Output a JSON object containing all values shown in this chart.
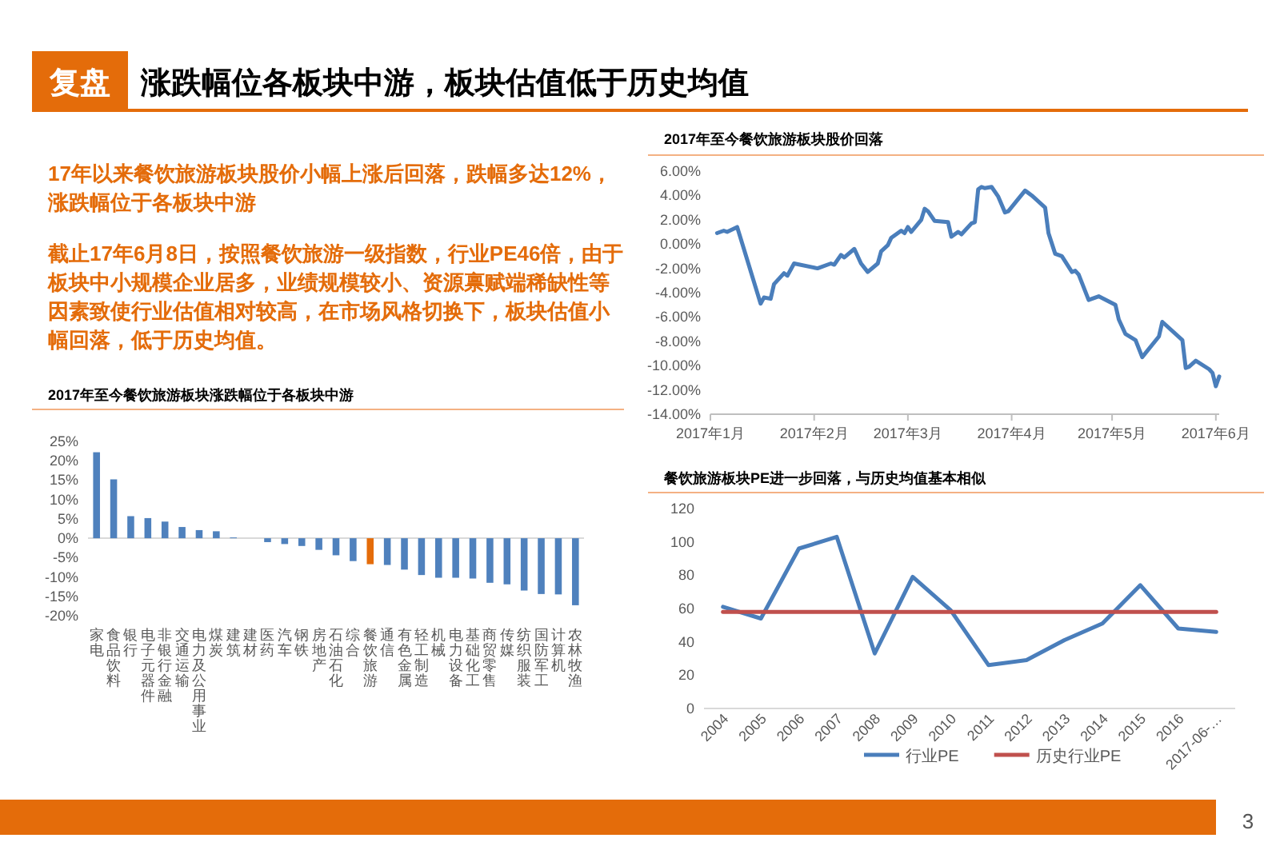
{
  "chart_data": [
    {
      "type": "other",
      "title": "涨跌幅位各板块中游，板块估值低于历史均值",
      "annotations": [
        "复盘",
        "17年以来餐饮旅游板块股价小幅上涨后回落，跌幅多达12%，涨跌幅位于各板块中游",
        "截止17年6月8日，按照餐饮旅游一级指数，行业PE46倍，由于板块中小规模企业居多，业绩规模较小、资源禀赋端稀缺性等因素致使行业估值相对较高，在市场风格切换下，板块估值小幅回落，低于历史均值。",
        "3"
      ]
    },
    {
      "type": "bar",
      "title": "2017年至今餐饮旅游板块涨跌幅位于各板块中游",
      "categories": [
        "家电",
        "食品饮料",
        "银行",
        "电子元器件",
        "非银行金融",
        "交通运输",
        "电力及公用事业",
        "煤炭",
        "建筑",
        "建材",
        "医药",
        "汽车",
        "钢铁",
        "房地产",
        "石油石化",
        "综合",
        "餐饮旅游",
        "通信",
        "有色金属",
        "轻工制造",
        "机械",
        "电力设备",
        "基础化工",
        "商贸零售",
        "传媒",
        "纺织服装",
        "国防军工",
        "计算机",
        "农林牧渔"
      ],
      "values": [
        22.2,
        15.2,
        5.7,
        5.2,
        4.3,
        2.9,
        2.1,
        1.8,
        0.2,
        0,
        -1.0,
        -1.5,
        -2.0,
        -3.0,
        -4.4,
        -5.9,
        -6.7,
        -6.9,
        -8.1,
        -9.5,
        -10.2,
        -10.2,
        -10.4,
        -11.5,
        -11.9,
        -13.5,
        -14.4,
        -14.5,
        -17.3
      ],
      "colors": [
        "#4f81bd",
        "#4f81bd",
        "#4f81bd",
        "#4f81bd",
        "#4f81bd",
        "#4f81bd",
        "#4f81bd",
        "#4f81bd",
        "#4f81bd",
        "#4f81bd",
        "#4f81bd",
        "#4f81bd",
        "#4f81bd",
        "#4f81bd",
        "#4f81bd",
        "#4f81bd",
        "#e46c0a",
        "#4f81bd",
        "#4f81bd",
        "#4f81bd",
        "#4f81bd",
        "#4f81bd",
        "#4f81bd",
        "#4f81bd",
        "#4f81bd",
        "#4f81bd",
        "#4f81bd",
        "#4f81bd",
        "#4f81bd"
      ],
      "ylim": [
        -20,
        25
      ],
      "yticks": [
        {
          "value": 25,
          "label": "25%"
        },
        {
          "value": 20,
          "label": "20%"
        },
        {
          "value": 15,
          "label": "15%"
        },
        {
          "value": 10,
          "label": "10%"
        },
        {
          "value": 5,
          "label": "5%"
        },
        {
          "value": 0,
          "label": "0%"
        },
        {
          "value": -5,
          "label": "-5%"
        },
        {
          "value": -10,
          "label": "-10%"
        },
        {
          "value": -15,
          "label": "-15%"
        },
        {
          "value": -20,
          "label": "-20%"
        }
      ]
    },
    {
      "type": "line",
      "title": "2017年至今餐饮旅游板块股价回落",
      "x": [
        "2017-01-03",
        "2017-01-05",
        "2017-01-06",
        "2017-01-09",
        "2017-01-11",
        "2017-01-16",
        "2017-01-17",
        "2017-01-19",
        "2017-01-20",
        "2017-01-23",
        "2017-01-24",
        "2017-01-26",
        "2017-02-02",
        "2017-02-06",
        "2017-02-07",
        "2017-02-09",
        "2017-02-10",
        "2017-02-13",
        "2017-02-15",
        "2017-02-17",
        "2017-02-20",
        "2017-02-21",
        "2017-02-23",
        "2017-02-24",
        "2017-02-27",
        "2017-02-28",
        "2017-03-01",
        "2017-03-02",
        "2017-03-05",
        "2017-03-06",
        "2017-03-07",
        "2017-03-09",
        "2017-03-13",
        "2017-03-14",
        "2017-03-16",
        "2017-03-17",
        "2017-03-20",
        "2017-03-21",
        "2017-03-22",
        "2017-03-23",
        "2017-03-24",
        "2017-03-26",
        "2017-03-28",
        "2017-03-30",
        "2017-03-31",
        "2017-04-05",
        "2017-04-06",
        "2017-04-07",
        "2017-04-11",
        "2017-04-12",
        "2017-04-14",
        "2017-04-16",
        "2017-04-19",
        "2017-04-20",
        "2017-04-21",
        "2017-04-24",
        "2017-04-27",
        "2017-05-02",
        "2017-05-03",
        "2017-05-05",
        "2017-05-08",
        "2017-05-10",
        "2017-05-15",
        "2017-05-16",
        "2017-05-22",
        "2017-05-23",
        "2017-05-24",
        "2017-05-26",
        "2017-05-30",
        "2017-05-31",
        "2017-06-01",
        "2017-06-02"
      ],
      "series": [
        {
          "color": "#4a7ebb",
          "values": [
            0.9,
            1.1,
            1.0,
            1.4,
            -0.4,
            -4.9,
            -4.4,
            -4.5,
            -3.3,
            -2.4,
            -2.6,
            -1.6,
            -2.0,
            -1.6,
            -1.7,
            -0.9,
            -1.1,
            -0.4,
            -1.6,
            -2.3,
            -1.6,
            -0.6,
            -0.1,
            0.5,
            1.1,
            0.9,
            1.4,
            1.0,
            2.0,
            2.9,
            2.7,
            1.9,
            1.8,
            0.6,
            1.0,
            0.8,
            1.7,
            1.8,
            4.5,
            4.7,
            4.6,
            4.7,
            3.9,
            2.6,
            2.7,
            4.4,
            4.2,
            4.0,
            3.0,
            0.9,
            -0.8,
            -1.0,
            -2.3,
            -2.2,
            -2.5,
            -4.6,
            -4.3,
            -5.0,
            -6.2,
            -7.4,
            -7.9,
            -9.3,
            -7.6,
            -6.4,
            -7.9,
            -10.2,
            -10.1,
            -9.6,
            -10.3,
            -10.6,
            -11.7,
            -10.9
          ]
        }
      ],
      "xlim": [
        "2017-01-01",
        "2017-06-02"
      ],
      "xticks": [
        {
          "value": "2017-01-01",
          "label": "2017年1月"
        },
        {
          "value": "2017-02-01",
          "label": "2017年2月"
        },
        {
          "value": "2017-03-01",
          "label": "2017年3月"
        },
        {
          "value": "2017-04-01",
          "label": "2017年4月"
        },
        {
          "value": "2017-05-01",
          "label": "2017年5月"
        },
        {
          "value": "2017-06-01",
          "label": "2017年6月"
        }
      ],
      "ylim": [
        -14,
        6
      ],
      "yticks": [
        {
          "value": 6,
          "label": "6.00%"
        },
        {
          "value": 4,
          "label": "4.00%"
        },
        {
          "value": 2,
          "label": "2.00%"
        },
        {
          "value": 0,
          "label": "0.00%"
        },
        {
          "value": -2,
          "label": "-2.00%"
        },
        {
          "value": -4,
          "label": "-4.00%"
        },
        {
          "value": -6,
          "label": "-6.00%"
        },
        {
          "value": -8,
          "label": "-8.00%"
        },
        {
          "value": -10,
          "label": "-10.00%"
        },
        {
          "value": -12,
          "label": "-12.00%"
        },
        {
          "value": -14,
          "label": "-14.00%"
        }
      ],
      "line_style": "solid"
    },
    {
      "type": "line",
      "title": "餐饮旅游板块PE进一步回落，与历史均值基本相似",
      "categories": [
        "2004",
        "2005",
        "2006",
        "2007",
        "2008",
        "2009",
        "2010",
        "2011",
        "2012",
        "2013",
        "2014",
        "2015",
        "2016",
        "2017-06-…"
      ],
      "series": [
        {
          "name": "行业PE",
          "color": "#4a7ebb",
          "values": [
            61,
            54,
            96,
            103,
            33,
            79,
            59,
            26,
            29,
            41,
            51,
            74,
            48,
            46
          ]
        },
        {
          "name": "历史行业PE",
          "color": "#c0504d",
          "values": [
            58,
            58,
            58,
            58,
            58,
            58,
            58,
            58,
            58,
            58,
            58,
            58,
            58,
            58
          ]
        }
      ],
      "ylim": [
        0,
        120
      ],
      "yticks": [
        0,
        20,
        40,
        60,
        80,
        100,
        120
      ],
      "legend": "bottom",
      "line_style": "solid"
    }
  ]
}
